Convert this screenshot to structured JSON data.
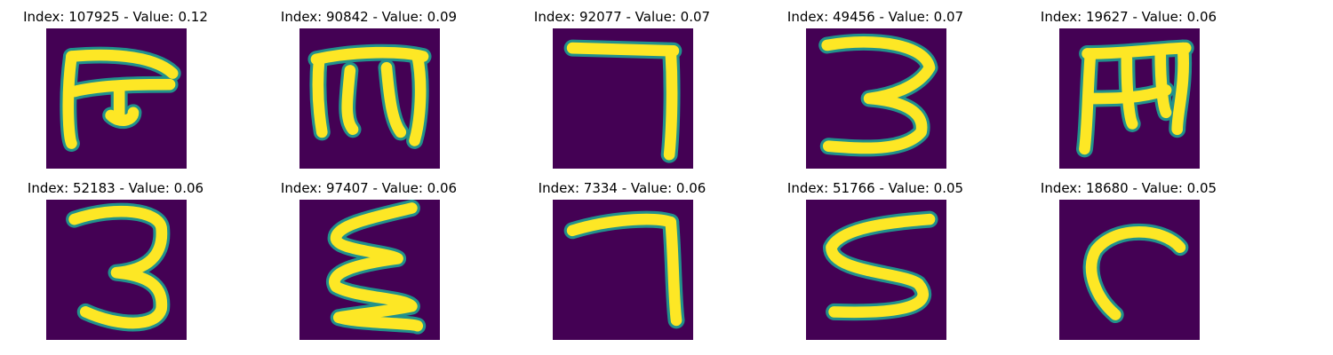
{
  "background_color": "#440154",
  "stroke_color": "#fde725",
  "edge_color": "#21918c",
  "panels": [
    {
      "title": "Index: 107925 - Value: 0.12",
      "glyph": "frame-hook"
    },
    {
      "title": "Index: 90842 - Value: 0.09",
      "glyph": "m-shape"
    },
    {
      "title": "Index: 92077 - Value: 0.07",
      "glyph": "seven"
    },
    {
      "title": "Index: 49456 - Value: 0.07",
      "glyph": "three"
    },
    {
      "title": "Index: 19627 - Value: 0.06",
      "glyph": "m-shape-bold"
    },
    {
      "title": "Index: 52183 - Value: 0.06",
      "glyph": "three-alt"
    },
    {
      "title": "Index: 97407 - Value: 0.06",
      "glyph": "zigzag"
    },
    {
      "title": "Index: 7334 - Value: 0.06",
      "glyph": "seven-alt"
    },
    {
      "title": "Index: 51766 - Value: 0.05",
      "glyph": "s-shape"
    },
    {
      "title": "Index: 18680 - Value: 0.05",
      "glyph": "hook"
    }
  ]
}
